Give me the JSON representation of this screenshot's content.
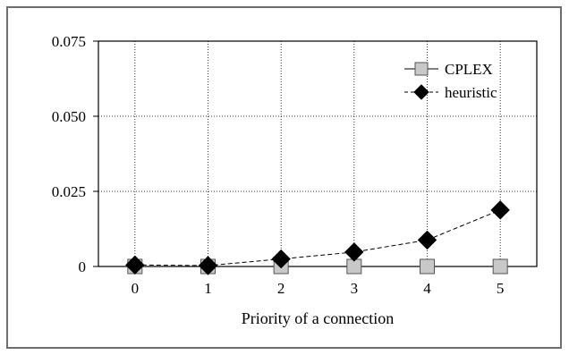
{
  "chart_data": {
    "type": "line",
    "title": "",
    "xlabel": "Priority of a connection",
    "ylabel": "",
    "x": [
      0,
      1,
      2,
      3,
      4,
      5
    ],
    "x_tick_labels": [
      "0",
      "1",
      "2",
      "3",
      "4",
      "5"
    ],
    "y_ticks": [
      0,
      0.025,
      0.05,
      0.075
    ],
    "y_tick_labels": [
      "0",
      "0.025",
      "0.050",
      "0.075"
    ],
    "xlim": [
      -0.5,
      5.5
    ],
    "ylim": [
      0,
      0.075
    ],
    "grid": true,
    "legend_position": "top-right",
    "series": [
      {
        "name": "CPLEX",
        "values": [
          0,
          0,
          0,
          0,
          0,
          0
        ],
        "marker": "square",
        "line_style": "solid",
        "color": "#c8c8c8"
      },
      {
        "name": "heuristic",
        "values": [
          0.0005,
          0.0003,
          0.0025,
          0.0048,
          0.0088,
          0.0188
        ],
        "marker": "diamond",
        "line_style": "dashed",
        "color": "#000000"
      }
    ]
  }
}
